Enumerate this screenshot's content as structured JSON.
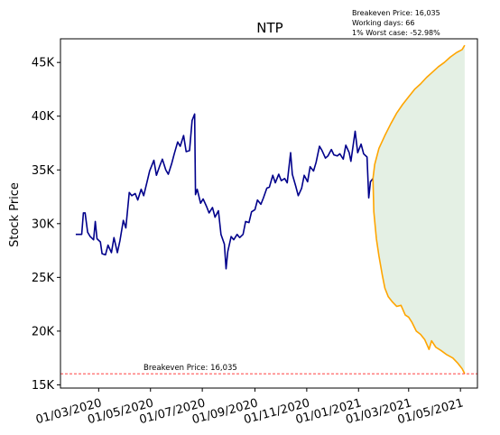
{
  "chart_data": {
    "type": "line",
    "title": "NTP",
    "ylabel": "Stock Price",
    "xlabel": "",
    "info_lines": [
      "Breakeven Price: 16,035",
      "Working days: 66",
      "1% Worst case: -52.98%"
    ],
    "breakeven": {
      "value": 16035,
      "label": "Breakeven Price: 16,035",
      "color": "#ff0000"
    },
    "ylim": [
      14700,
      47200
    ],
    "xlim": [
      "2020-01-16",
      "2021-05-21"
    ],
    "y_ticks": [
      {
        "value": 15000,
        "label": "15K"
      },
      {
        "value": 20000,
        "label": "20K"
      },
      {
        "value": 25000,
        "label": "25K"
      },
      {
        "value": 30000,
        "label": "30K"
      },
      {
        "value": 35000,
        "label": "35K"
      },
      {
        "value": 40000,
        "label": "40K"
      },
      {
        "value": 45000,
        "label": "45K"
      }
    ],
    "x_ticks": [
      {
        "date": "2020-03-01",
        "label": "01/03/2020"
      },
      {
        "date": "2020-05-01",
        "label": "01/05/2020"
      },
      {
        "date": "2020-07-01",
        "label": "01/07/2020"
      },
      {
        "date": "2020-09-01",
        "label": "01/09/2020"
      },
      {
        "date": "2020-11-01",
        "label": "01/11/2020"
      },
      {
        "date": "2021-01-01",
        "label": "01/01/2021"
      },
      {
        "date": "2021-03-01",
        "label": "01/03/2021"
      },
      {
        "date": "2021-05-01",
        "label": "01/05/2021"
      }
    ],
    "colors": {
      "history": "#00008b",
      "projection": "#ffa500",
      "band": "#2e8b2e"
    },
    "series": [
      {
        "values": [
          [
            "2020-02-03",
            29000
          ],
          [
            "2020-02-10",
            29000
          ],
          [
            "2020-02-12",
            31000
          ],
          [
            "2020-02-14",
            31000
          ],
          [
            "2020-02-17",
            29200
          ],
          [
            "2020-02-20",
            28800
          ],
          [
            "2020-02-24",
            28500
          ],
          [
            "2020-02-26",
            30200
          ],
          [
            "2020-02-28",
            28600
          ],
          [
            "2020-03-03",
            28300
          ],
          [
            "2020-03-05",
            27200
          ],
          [
            "2020-03-09",
            27100
          ],
          [
            "2020-03-12",
            28000
          ],
          [
            "2020-03-16",
            27300
          ],
          [
            "2020-03-19",
            28700
          ],
          [
            "2020-03-23",
            27300
          ],
          [
            "2020-03-26",
            28400
          ],
          [
            "2020-03-30",
            30300
          ],
          [
            "2020-04-02",
            29600
          ],
          [
            "2020-04-06",
            32900
          ],
          [
            "2020-04-09",
            32600
          ],
          [
            "2020-04-13",
            32800
          ],
          [
            "2020-04-16",
            32200
          ],
          [
            "2020-04-20",
            33200
          ],
          [
            "2020-04-23",
            32600
          ],
          [
            "2020-04-27",
            33900
          ],
          [
            "2020-04-30",
            34900
          ],
          [
            "2020-05-05",
            35900
          ],
          [
            "2020-05-08",
            34500
          ],
          [
            "2020-05-12",
            35400
          ],
          [
            "2020-05-15",
            36000
          ],
          [
            "2020-05-19",
            35000
          ],
          [
            "2020-05-22",
            34600
          ],
          [
            "2020-05-26",
            35600
          ],
          [
            "2020-05-29",
            36500
          ],
          [
            "2020-06-02",
            37600
          ],
          [
            "2020-06-05",
            37200
          ],
          [
            "2020-06-09",
            38200
          ],
          [
            "2020-06-12",
            36700
          ],
          [
            "2020-06-16",
            36800
          ],
          [
            "2020-06-19",
            39600
          ],
          [
            "2020-06-22",
            40200
          ],
          [
            "2020-06-23",
            32700
          ],
          [
            "2020-06-25",
            33200
          ],
          [
            "2020-06-29",
            31900
          ],
          [
            "2020-07-02",
            32300
          ],
          [
            "2020-07-06",
            31600
          ],
          [
            "2020-07-09",
            31000
          ],
          [
            "2020-07-13",
            31500
          ],
          [
            "2020-07-16",
            30600
          ],
          [
            "2020-07-20",
            31200
          ],
          [
            "2020-07-23",
            29000
          ],
          [
            "2020-07-27",
            28100
          ],
          [
            "2020-07-29",
            25800
          ],
          [
            "2020-07-31",
            27400
          ],
          [
            "2020-08-04",
            28800
          ],
          [
            "2020-08-07",
            28500
          ],
          [
            "2020-08-11",
            29000
          ],
          [
            "2020-08-14",
            28700
          ],
          [
            "2020-08-18",
            29000
          ],
          [
            "2020-08-21",
            30200
          ],
          [
            "2020-08-25",
            30100
          ],
          [
            "2020-08-28",
            31100
          ],
          [
            "2020-09-01",
            31300
          ],
          [
            "2020-09-04",
            32200
          ],
          [
            "2020-09-08",
            31800
          ],
          [
            "2020-09-11",
            32400
          ],
          [
            "2020-09-15",
            33300
          ],
          [
            "2020-09-18",
            33400
          ],
          [
            "2020-09-22",
            34500
          ],
          [
            "2020-09-25",
            33800
          ],
          [
            "2020-09-29",
            34600
          ],
          [
            "2020-10-02",
            34000
          ],
          [
            "2020-10-06",
            34200
          ],
          [
            "2020-10-09",
            33800
          ],
          [
            "2020-10-13",
            36600
          ],
          [
            "2020-10-15",
            34600
          ],
          [
            "2020-10-19",
            33500
          ],
          [
            "2020-10-22",
            32600
          ],
          [
            "2020-10-26",
            33300
          ],
          [
            "2020-10-29",
            34500
          ],
          [
            "2020-11-02",
            33900
          ],
          [
            "2020-11-05",
            35300
          ],
          [
            "2020-11-09",
            34900
          ],
          [
            "2020-11-12",
            35700
          ],
          [
            "2020-11-16",
            37200
          ],
          [
            "2020-11-19",
            36800
          ],
          [
            "2020-11-23",
            36100
          ],
          [
            "2020-11-26",
            36300
          ],
          [
            "2020-11-30",
            36900
          ],
          [
            "2020-12-03",
            36400
          ],
          [
            "2020-12-07",
            36300
          ],
          [
            "2020-12-10",
            36500
          ],
          [
            "2020-12-14",
            36000
          ],
          [
            "2020-12-17",
            37300
          ],
          [
            "2020-12-21",
            36600
          ],
          [
            "2020-12-23",
            35800
          ],
          [
            "2020-12-28",
            38600
          ],
          [
            "2020-12-31",
            36600
          ],
          [
            "2021-01-04",
            37400
          ],
          [
            "2021-01-07",
            36500
          ],
          [
            "2021-01-11",
            36200
          ],
          [
            "2021-01-13",
            32400
          ],
          [
            "2021-01-15",
            33900
          ],
          [
            "2021-01-18",
            34200
          ]
        ]
      },
      {
        "values": [
          [
            "2021-01-18",
            34200
          ],
          [
            "2021-01-20",
            35500
          ],
          [
            "2021-01-25",
            37000
          ],
          [
            "2021-02-01",
            38200
          ],
          [
            "2021-02-08",
            39300
          ],
          [
            "2021-02-15",
            40300
          ],
          [
            "2021-02-22",
            41100
          ],
          [
            "2021-03-01",
            41800
          ],
          [
            "2021-03-08",
            42500
          ],
          [
            "2021-03-15",
            43000
          ],
          [
            "2021-03-22",
            43600
          ],
          [
            "2021-03-29",
            44100
          ],
          [
            "2021-04-05",
            44600
          ],
          [
            "2021-04-12",
            45000
          ],
          [
            "2021-04-19",
            45500
          ],
          [
            "2021-04-26",
            45900
          ],
          [
            "2021-05-03",
            46200
          ],
          [
            "2021-05-06",
            46600
          ]
        ]
      },
      {
        "values": [
          [
            "2021-01-18",
            34200
          ],
          [
            "2021-01-19",
            31100
          ],
          [
            "2021-01-22",
            28600
          ],
          [
            "2021-01-25",
            27000
          ],
          [
            "2021-01-29",
            25200
          ],
          [
            "2021-02-01",
            24000
          ],
          [
            "2021-02-05",
            23200
          ],
          [
            "2021-02-10",
            22700
          ],
          [
            "2021-02-15",
            22300
          ],
          [
            "2021-02-20",
            22400
          ],
          [
            "2021-02-25",
            21500
          ],
          [
            "2021-03-01",
            21300
          ],
          [
            "2021-03-05",
            20800
          ],
          [
            "2021-03-10",
            20000
          ],
          [
            "2021-03-15",
            19700
          ],
          [
            "2021-03-20",
            19200
          ],
          [
            "2021-03-25",
            18300
          ],
          [
            "2021-03-28",
            19100
          ],
          [
            "2021-04-02",
            18500
          ],
          [
            "2021-04-08",
            18200
          ],
          [
            "2021-04-15",
            17800
          ],
          [
            "2021-04-22",
            17500
          ],
          [
            "2021-04-28",
            17000
          ],
          [
            "2021-05-03",
            16500
          ],
          [
            "2021-05-06",
            16035
          ]
        ]
      }
    ]
  }
}
